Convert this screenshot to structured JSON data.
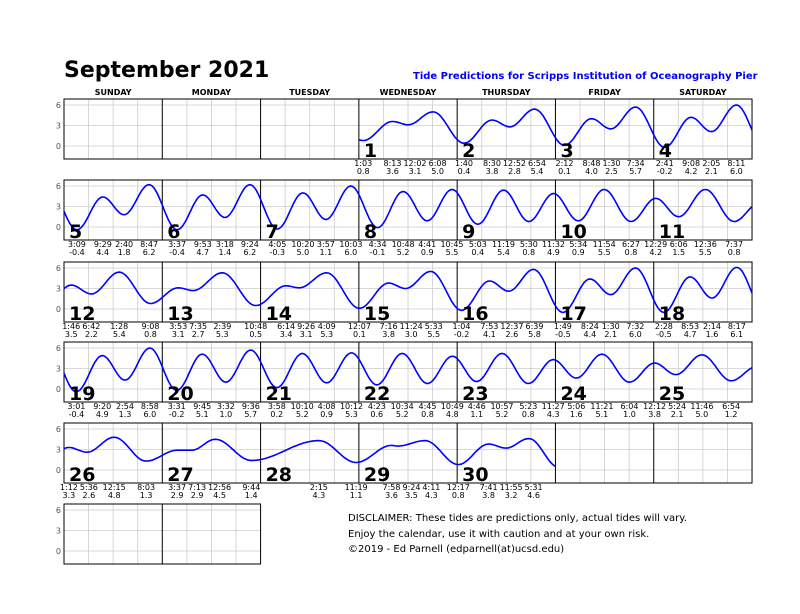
{
  "header": {
    "title": "September 2021",
    "subtitle": "Tide Predictions for Scripps Institution of Oceanography Pier"
  },
  "disclaimer": [
    "DISCLAIMER: These tides are predictions only, actual tides will vary.",
    "Enjoy the calendar, use it with caution and at your own risk.",
    "©2019 - Ed Parnell (edparnell(at)ucsd.edu)"
  ],
  "colors": {
    "curve": "#0000ff",
    "subtitle": "#0000ff",
    "grid": "#cccccc",
    "day_border": "#000000"
  },
  "chart_data": {
    "type": "line",
    "weekdays": [
      "SUNDAY",
      "MONDAY",
      "TUESDAY",
      "WEDNESDAY",
      "THURSDAY",
      "FRIDAY",
      "SATURDAY"
    ],
    "first_weekday_index": 3,
    "y_ticks": [
      "6",
      "3",
      "0"
    ],
    "ylim": [
      -1,
      7
    ],
    "grid": true,
    "x_unit": "hour of day",
    "y_unit": "feet",
    "days": [
      {
        "day": "1",
        "tides": [
          [
            "1:03",
            "0.8",
            1.05
          ],
          [
            "8:13",
            "3.6",
            8.22
          ],
          [
            "12:02",
            "3.1",
            12.03
          ],
          [
            "6:08",
            "5.0",
            18.13
          ]
        ]
      },
      {
        "day": "2",
        "tides": [
          [
            "1:40",
            "0.4",
            1.67
          ],
          [
            "8:30",
            "3.8",
            8.5
          ],
          [
            "12:52",
            "2.8",
            12.87
          ],
          [
            "6:54",
            "5.4",
            18.9
          ]
        ]
      },
      {
        "day": "3",
        "tides": [
          [
            "2:12",
            "0.1",
            2.2
          ],
          [
            "8:48",
            "4.0",
            8.8
          ],
          [
            "1:30",
            "2.5",
            13.5
          ],
          [
            "7:34",
            "5.7",
            19.57
          ]
        ]
      },
      {
        "day": "4",
        "tides": [
          [
            "2:41",
            "-0.2",
            2.68
          ],
          [
            "9:08",
            "4.2",
            9.13
          ],
          [
            "2:05",
            "2.1",
            14.08
          ],
          [
            "8:11",
            "6.0",
            20.18
          ]
        ]
      },
      {
        "day": "5",
        "tides": [
          [
            "3:09",
            "-0.4",
            3.15
          ],
          [
            "9:29",
            "4.4",
            9.48
          ],
          [
            "2:40",
            "1.8",
            14.67
          ],
          [
            "8:47",
            "6.2",
            20.78
          ]
        ]
      },
      {
        "day": "6",
        "tides": [
          [
            "3:37",
            "-0.4",
            3.62
          ],
          [
            "9:53",
            "4.7",
            9.88
          ],
          [
            "3:18",
            "1.4",
            15.3
          ],
          [
            "9:24",
            "6.2",
            21.4
          ]
        ]
      },
      {
        "day": "7",
        "tides": [
          [
            "4:05",
            "-0.3",
            4.08
          ],
          [
            "10:20",
            "5.0",
            10.33
          ],
          [
            "3:57",
            "1.1",
            15.95
          ],
          [
            "10:03",
            "6.0",
            22.05
          ]
        ]
      },
      {
        "day": "8",
        "tides": [
          [
            "4:34",
            "-0.1",
            4.57
          ],
          [
            "10:48",
            "5.2",
            10.8
          ],
          [
            "4:41",
            "0.9",
            16.68
          ],
          [
            "10:45",
            "5.5",
            22.75
          ]
        ]
      },
      {
        "day": "9",
        "tides": [
          [
            "5:03",
            "0.4",
            5.05
          ],
          [
            "11:19",
            "5.4",
            11.32
          ],
          [
            "5:30",
            "0.8",
            17.5
          ],
          [
            "11:32",
            "4.9",
            23.53
          ]
        ]
      },
      {
        "day": "10",
        "tides": [
          [
            "5:34",
            "0.9",
            5.57
          ],
          [
            "11:54",
            "5.5",
            11.9
          ],
          [
            "6:27",
            "0.8",
            18.45
          ]
        ]
      },
      {
        "day": "11",
        "tides": [
          [
            "12:29",
            "4.2",
            0.48
          ],
          [
            "6:06",
            "1.5",
            6.1
          ],
          [
            "12:36",
            "5.5",
            12.6
          ],
          [
            "7:37",
            "0.8",
            19.62
          ]
        ]
      },
      {
        "day": "12",
        "tides": [
          [
            "1:46",
            "3.5",
            1.77
          ],
          [
            "6:42",
            "2.2",
            6.7
          ],
          [
            "1:28",
            "5.4",
            13.47
          ],
          [
            "9:08",
            "0.8",
            21.13
          ]
        ]
      },
      {
        "day": "13",
        "tides": [
          [
            "3:53",
            "3.1",
            3.88
          ],
          [
            "7:35",
            "2.7",
            7.58
          ],
          [
            "2:39",
            "5.3",
            14.65
          ],
          [
            "10:48",
            "0.5",
            22.8
          ]
        ]
      },
      {
        "day": "14",
        "tides": [
          [
            "6:14",
            "3.4",
            6.23
          ],
          [
            "9:26",
            "3.1",
            9.43
          ],
          [
            "4:09",
            "5.3",
            16.15
          ]
        ]
      },
      {
        "day": "15",
        "tides": [
          [
            "12:07",
            "0.1",
            0.12
          ],
          [
            "7:16",
            "3.8",
            7.27
          ],
          [
            "11:24",
            "3.0",
            11.4
          ],
          [
            "5:33",
            "5.5",
            17.55
          ]
        ]
      },
      {
        "day": "16",
        "tides": [
          [
            "1:04",
            "-0.2",
            1.07
          ],
          [
            "7:53",
            "4.1",
            7.88
          ],
          [
            "12:37",
            "2.6",
            12.62
          ],
          [
            "6:39",
            "5.8",
            18.65
          ]
        ]
      },
      {
        "day": "17",
        "tides": [
          [
            "1:49",
            "-0.5",
            1.82
          ],
          [
            "8:24",
            "4.4",
            8.4
          ],
          [
            "1:30",
            "2.1",
            13.5
          ],
          [
            "7:32",
            "6.0",
            19.53
          ]
        ]
      },
      {
        "day": "18",
        "tides": [
          [
            "2:28",
            "-0.5",
            2.47
          ],
          [
            "8:53",
            "4.7",
            8.88
          ],
          [
            "2:14",
            "1.6",
            14.23
          ],
          [
            "8:17",
            "6.1",
            20.28
          ]
        ]
      },
      {
        "day": "19",
        "tides": [
          [
            "3:01",
            "-0.4",
            3.02
          ],
          [
            "9:20",
            "4.9",
            9.33
          ],
          [
            "2:54",
            "1.3",
            14.9
          ],
          [
            "8:58",
            "6.0",
            20.97
          ]
        ]
      },
      {
        "day": "20",
        "tides": [
          [
            "3:31",
            "-0.2",
            3.52
          ],
          [
            "9:45",
            "5.1",
            9.75
          ],
          [
            "3:32",
            "1.0",
            15.53
          ],
          [
            "9:36",
            "5.7",
            21.6
          ]
        ]
      },
      {
        "day": "21",
        "tides": [
          [
            "3:58",
            "0.2",
            3.97
          ],
          [
            "10:10",
            "5.2",
            10.17
          ],
          [
            "4:08",
            "0.9",
            16.13
          ],
          [
            "10:12",
            "5.3",
            22.2
          ]
        ]
      },
      {
        "day": "22",
        "tides": [
          [
            "4:23",
            "0.6",
            4.38
          ],
          [
            "10:34",
            "5.2",
            10.57
          ],
          [
            "4:45",
            "0.8",
            16.75
          ],
          [
            "10:49",
            "4.8",
            22.82
          ]
        ]
      },
      {
        "day": "23",
        "tides": [
          [
            "4:46",
            "1.1",
            4.77
          ],
          [
            "10:57",
            "5.2",
            10.95
          ],
          [
            "5:23",
            "0.8",
            17.38
          ],
          [
            "11:27",
            "4.3",
            23.45
          ]
        ]
      },
      {
        "day": "24",
        "tides": [
          [
            "5:06",
            "1.6",
            5.1
          ],
          [
            "11:21",
            "5.1",
            11.35
          ],
          [
            "6:04",
            "1.0",
            18.07
          ]
        ]
      },
      {
        "day": "25",
        "tides": [
          [
            "12:12",
            "3.8",
            0.2
          ],
          [
            "5:24",
            "2.1",
            5.4
          ],
          [
            "11:46",
            "5.0",
            11.77
          ],
          [
            "6:54",
            "1.2",
            18.9
          ]
        ]
      },
      {
        "day": "26",
        "tides": [
          [
            "1:12",
            "3.3",
            1.2
          ],
          [
            "5:36",
            "2.6",
            5.6
          ],
          [
            "12:15",
            "4.8",
            12.25
          ],
          [
            "8:03",
            "1.3",
            20.05
          ]
        ]
      },
      {
        "day": "27",
        "tides": [
          [
            "3:37",
            "2.9",
            3.62
          ],
          [
            "7:13",
            "2.9",
            7.22
          ],
          [
            "12:56",
            "4.5",
            12.93
          ],
          [
            "9:44",
            "1.4",
            21.73
          ]
        ]
      },
      {
        "day": "28",
        "tides": [
          [
            "2:15",
            "4.3",
            14.25
          ],
          [
            "11:19",
            "1.1",
            23.32
          ]
        ]
      },
      {
        "day": "29",
        "tides": [
          [
            "7:58",
            "3.6",
            7.97
          ],
          [
            "9:24",
            "3.5",
            9.4
          ],
          [
            "4:11",
            "4.3",
            16.18
          ]
        ]
      },
      {
        "day": "30",
        "tides": [
          [
            "12:17",
            "0.8",
            0.28
          ],
          [
            "7:41",
            "3.8",
            7.68
          ],
          [
            "11:55",
            "3.2",
            11.92
          ],
          [
            "5:31",
            "4.6",
            17.52
          ]
        ]
      }
    ]
  }
}
